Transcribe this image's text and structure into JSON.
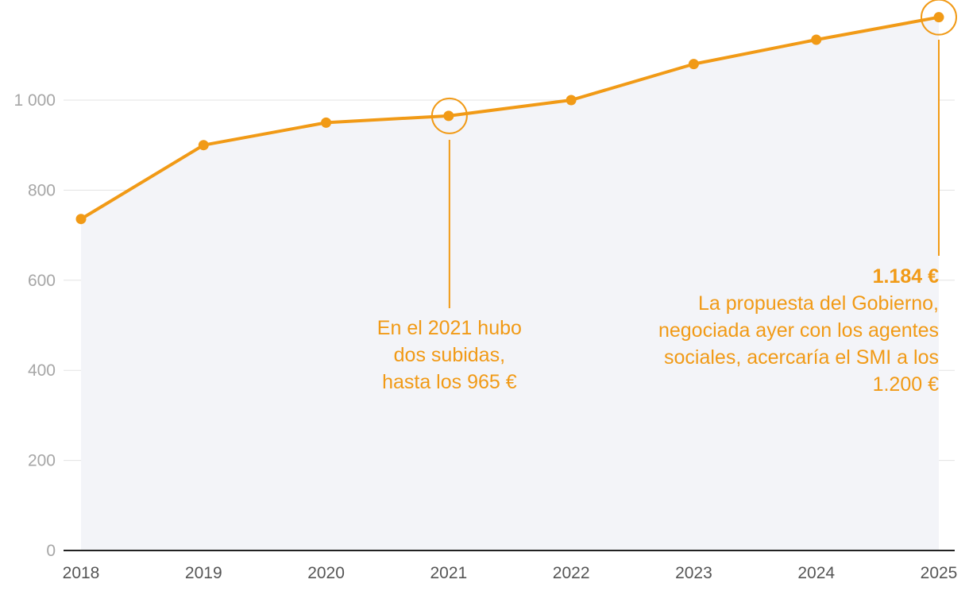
{
  "chart_data": {
    "type": "area",
    "x": [
      "2018",
      "2019",
      "2020",
      "2021",
      "2022",
      "2023",
      "2024",
      "2025"
    ],
    "series": [
      {
        "values": [
          736,
          900,
          950,
          965,
          1000,
          1080,
          1134,
          1184
        ]
      }
    ],
    "y_ticks": [
      0,
      200,
      400,
      600,
      800,
      1000
    ],
    "y_tick_labels": [
      "0",
      "200",
      "400",
      "600",
      "800",
      "1 000"
    ],
    "ylim": [
      0,
      1184
    ],
    "grid": "horizontal",
    "colors": {
      "line": "#f19a16",
      "area": "#f3f4f8",
      "grid": "#e3e3e3",
      "axis": "#222222"
    },
    "annotations": [
      {
        "x": "2021",
        "value": 965,
        "lines": [
          "En el 2021 hubo",
          "dos subidas,",
          "hasta los 965 €"
        ]
      },
      {
        "x": "2025",
        "value": 1184,
        "title": "1.184 €",
        "lines": [
          "La propuesta del Gobierno,",
          "negociada ayer con los agentes",
          "sociales, acercaría el SMI a los",
          "1.200 €"
        ]
      }
    ]
  }
}
